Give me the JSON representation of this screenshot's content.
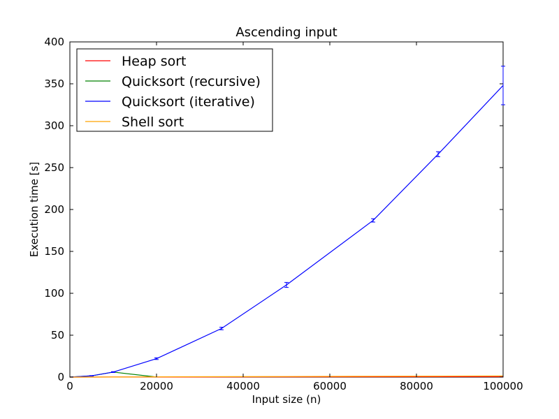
{
  "chart_data": {
    "type": "line",
    "title": "Ascending input",
    "xlabel": "Input size (n)",
    "ylabel": "Execution time [s]",
    "xlim": [
      0,
      100000
    ],
    "ylim": [
      0,
      400
    ],
    "xticks": [
      0,
      20000,
      40000,
      60000,
      80000,
      100000
    ],
    "yticks": [
      0,
      50,
      100,
      150,
      200,
      250,
      300,
      350,
      400
    ],
    "grid": false,
    "legend_position": "top-left",
    "series": [
      {
        "name": "Heap sort",
        "color": "#ff0000",
        "x": [
          0,
          5000,
          10000,
          20000,
          35000,
          50000,
          70000,
          85000,
          100000
        ],
        "y": [
          0,
          0.02,
          0.05,
          0.1,
          0.2,
          0.3,
          0.4,
          0.5,
          0.6
        ],
        "err": [
          0,
          0,
          0,
          0,
          0,
          0,
          0,
          0,
          0
        ]
      },
      {
        "name": "Quicksort (recursive)",
        "color": "#008000",
        "x": [
          0,
          5000,
          10000,
          20000
        ],
        "y": [
          0,
          1.5,
          6,
          0.1
        ],
        "err": [
          0,
          0,
          0,
          0
        ]
      },
      {
        "name": "Quicksort (iterative)",
        "color": "#0000ff",
        "x": [
          0,
          5000,
          10000,
          20000,
          35000,
          50000,
          70000,
          85000,
          100000
        ],
        "y": [
          0,
          1.5,
          6,
          22,
          58,
          110,
          187,
          266,
          348
        ],
        "err": [
          0,
          0.3,
          0.5,
          1,
          1.5,
          3,
          2,
          3,
          23
        ]
      },
      {
        "name": "Shell sort",
        "color": "#ffa500",
        "x": [
          0,
          5000,
          10000,
          20000,
          35000,
          50000,
          70000,
          85000,
          100000
        ],
        "y": [
          0,
          0.05,
          0.1,
          0.3,
          0.5,
          0.7,
          1.0,
          1.2,
          1.4
        ],
        "err": [
          0,
          0,
          0,
          0,
          0,
          0,
          0,
          0,
          0
        ]
      }
    ]
  }
}
